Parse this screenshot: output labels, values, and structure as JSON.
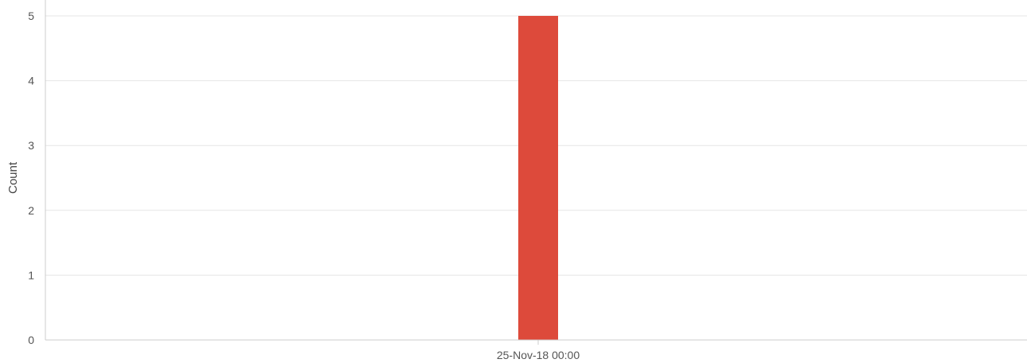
{
  "chart_data": {
    "type": "bar",
    "categories": [
      "25-Nov-18 00:00"
    ],
    "values": [
      5
    ],
    "xlabel": "",
    "ylabel": "Count",
    "ylim": [
      0,
      5
    ],
    "yticks": [
      0,
      1,
      2,
      3,
      4,
      5
    ],
    "grid": true,
    "legend": "none",
    "bar_color": "#dd4a3b",
    "grid_color": "#e6e6e6",
    "axis_color": "#cccccc"
  }
}
